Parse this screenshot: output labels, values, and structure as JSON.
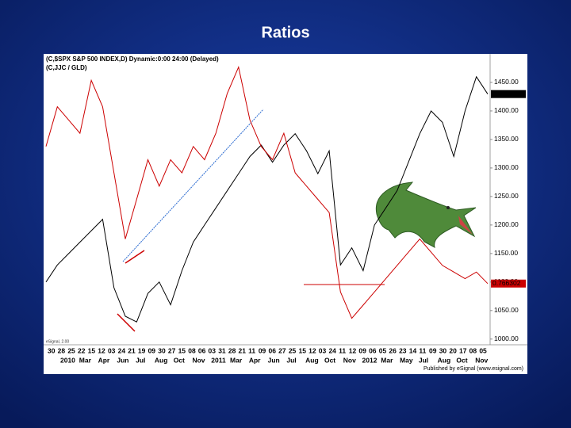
{
  "title": "Ratios",
  "chart_data": {
    "type": "line",
    "header": [
      "(C,$SPX   S&P 500 INDEX,D) Dynamic:0:00 24:00 (Delayed)",
      "(C,JJC / GLD)"
    ],
    "watermark": "eSignal, 2.00",
    "footer": "Published by eSignal (www.esignal.com)",
    "x_day_labels": [
      "30",
      "28",
      "25",
      "22",
      "15",
      "12",
      "03",
      "24",
      "21",
      "19",
      "09",
      "30",
      "27",
      "15",
      "08",
      "06",
      "03",
      "31",
      "28",
      "21",
      "11",
      "09",
      "06",
      "27",
      "25",
      "15",
      "12",
      "03",
      "24",
      "11",
      "12",
      "09",
      "06",
      "05",
      "26",
      "23",
      "14",
      "11",
      "09",
      "30",
      "20",
      "17",
      "08",
      "05"
    ],
    "x_month_labels": [
      "2010",
      "Mar",
      "Apr",
      "Jun",
      "Jul",
      "Aug",
      "Oct",
      "Nov",
      "2011",
      "Mar",
      "Apr",
      "Jun",
      "Jul",
      "Aug",
      "Oct",
      "Nov",
      "2012",
      "Mar",
      "May",
      "Jul",
      "Aug",
      "Oct",
      "Nov"
    ],
    "ylim": [
      990,
      1500
    ],
    "yticks": [
      {
        "value": 1000,
        "label": "1000.00"
      },
      {
        "value": 1050,
        "label": "1050.00"
      },
      {
        "value": 1100,
        "label": "1100.00"
      },
      {
        "value": 1150,
        "label": "1150.00"
      },
      {
        "value": 1200,
        "label": "1200.00"
      },
      {
        "value": 1250,
        "label": "1250.00"
      },
      {
        "value": 1300,
        "label": "1300.00"
      },
      {
        "value": 1350,
        "label": "1350.00"
      },
      {
        "value": 1400,
        "label": "1400.00"
      },
      {
        "value": 1450,
        "label": "1450.00"
      }
    ],
    "y2lim": [
      0.72,
      0.94
    ],
    "series": [
      {
        "name": "$SPX",
        "color": "#000000",
        "values": [
          1100,
          1130,
          1150,
          1170,
          1190,
          1210,
          1090,
          1040,
          1030,
          1080,
          1100,
          1060,
          1120,
          1170,
          1200,
          1230,
          1260,
          1290,
          1320,
          1340,
          1310,
          1340,
          1360,
          1330,
          1290,
          1330,
          1130,
          1160,
          1120,
          1200,
          1230,
          1260,
          1310,
          1360,
          1400,
          1380,
          1320,
          1400,
          1460,
          1429.58
        ]
      },
      {
        "name": "JJC / GLD",
        "color": "#cc0000",
        "axis": "y2",
        "values": [
          0.87,
          0.9,
          0.89,
          0.88,
          0.92,
          0.9,
          0.85,
          0.8,
          0.83,
          0.86,
          0.84,
          0.86,
          0.85,
          0.87,
          0.86,
          0.88,
          0.91,
          0.93,
          0.89,
          0.87,
          0.86,
          0.88,
          0.85,
          0.84,
          0.83,
          0.82,
          0.76,
          0.74,
          0.75,
          0.76,
          0.77,
          0.78,
          0.79,
          0.8,
          0.79,
          0.78,
          0.775,
          0.77,
          0.775,
          0.766302
        ]
      }
    ]
  }
}
